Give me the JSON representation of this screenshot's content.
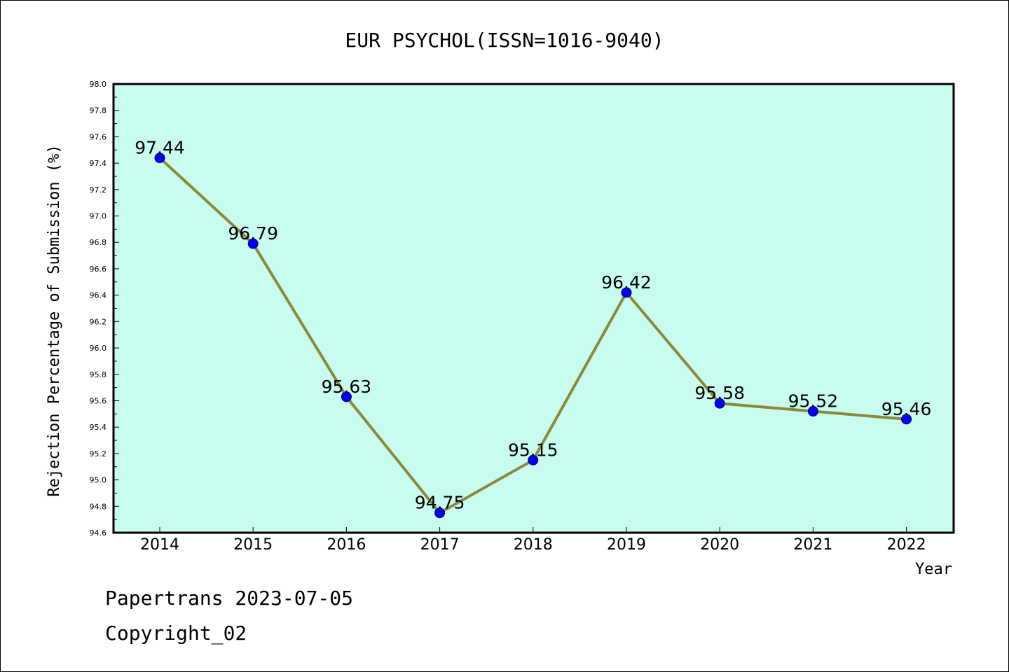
{
  "chart_data": {
    "type": "line",
    "title": "EUR PSYCHOL(ISSN=1016-9040)",
    "xlabel": "Year",
    "ylabel": "Rejection Percentage of Submission (%)",
    "categories": [
      "2014",
      "2015",
      "2016",
      "2017",
      "2018",
      "2019",
      "2020",
      "2021",
      "2022"
    ],
    "values": [
      97.44,
      96.79,
      95.63,
      94.75,
      95.15,
      96.42,
      95.58,
      95.52,
      95.46
    ],
    "data_labels": [
      "97.44",
      "96.79",
      "95.63",
      "94.75",
      "95.15",
      "96.42",
      "95.58",
      "95.52",
      "95.46"
    ],
    "ylim": [
      94.6,
      98.0
    ],
    "yticks": [
      "94.6",
      "94.8",
      "95.0",
      "95.2",
      "95.4",
      "95.6",
      "95.8",
      "96.0",
      "96.2",
      "96.4",
      "96.6",
      "96.8",
      "97.0",
      "97.2",
      "97.4",
      "97.6",
      "97.8",
      "98.0"
    ],
    "grid": false,
    "colors": {
      "plot_background": "#c8fcef",
      "line": "#8b8a3c",
      "marker": "#0000ee",
      "marker_edge": "#000080"
    }
  },
  "footer": {
    "line1": "Papertrans 2023-07-05",
    "line2": "Copyright_02"
  }
}
